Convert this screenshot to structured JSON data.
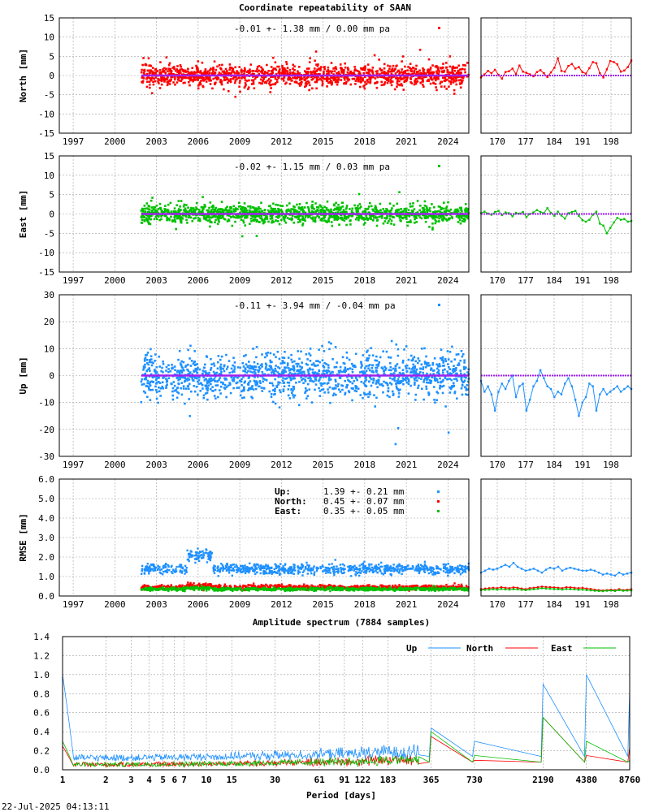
{
  "title": "Coordinate repeatability of SAAN",
  "timestamp": "22-Jul-2025 04:13:11",
  "colors": {
    "north": "#ff0000",
    "east": "#00c000",
    "up": "#1e90ff",
    "model": "#a020f0"
  },
  "chart_data": [
    {
      "type": "scatter",
      "id": "north",
      "ylabel": "North [mm]",
      "ylim": [
        -15,
        15
      ],
      "yticks": [
        -15,
        -10,
        -5,
        0,
        5,
        10,
        15
      ],
      "annotation": "-0.01 +- 1.38 mm /  0.00 mm pa",
      "xticks": [
        "1997",
        "2000",
        "2003",
        "2006",
        "2009",
        "2012",
        "2015",
        "2018",
        "2021",
        "2024"
      ],
      "xrange_years": [
        1996,
        2025.5
      ],
      "data_start_year": 2001.9,
      "data_end_year": 2025.5,
      "spread_mm": 1.38,
      "zoom_xticks": [
        "170",
        "177",
        "184",
        "191",
        "198"
      ],
      "zoom_xlim": [
        166,
        203
      ],
      "zoom_values": [
        -0.5,
        0.3,
        1.2,
        0.6,
        1.5,
        0.2,
        -0.8,
        0.9,
        1.1,
        1.8,
        0.4,
        2.6,
        1.0,
        0.7,
        0.3,
        -0.2,
        0.9,
        1.4,
        0.6,
        -0.4,
        0.8,
        2.0,
        4.5,
        1.2,
        1.0,
        2.5,
        3.0,
        1.8,
        2.2,
        0.9,
        0.5,
        1.9,
        3.5,
        3.2,
        0.6,
        -0.5,
        1.6,
        3.8,
        3.5,
        2.9,
        1.0,
        1.3,
        2.2,
        3.9
      ]
    },
    {
      "type": "scatter",
      "id": "east",
      "ylabel": "East [mm]",
      "ylim": [
        -15,
        15
      ],
      "yticks": [
        -15,
        -10,
        -5,
        0,
        5,
        10,
        15
      ],
      "annotation": "-0.02 +- 1.15 mm /  0.03 mm pa",
      "xticks": [
        "1997",
        "2000",
        "2003",
        "2006",
        "2009",
        "2012",
        "2015",
        "2018",
        "2021",
        "2024"
      ],
      "xrange_years": [
        1996,
        2025.5
      ],
      "data_start_year": 2001.9,
      "data_end_year": 2025.5,
      "spread_mm": 1.15,
      "zoom_xticks": [
        "170",
        "177",
        "184",
        "191",
        "198"
      ],
      "zoom_xlim": [
        166,
        203
      ],
      "zoom_values": [
        0.2,
        0.6,
        0.1,
        -0.2,
        0.5,
        0.8,
        -0.3,
        0.4,
        0.2,
        -0.6,
        0.3,
        0.1,
        0.5,
        -0.8,
        0.0,
        0.4,
        1.0,
        0.5,
        0.2,
        1.5,
        0.3,
        -0.5,
        0.6,
        -0.4,
        -1.2,
        0.2,
        0.5,
        0.8,
        -0.5,
        -1.6,
        -2.0,
        -1.5,
        -0.2,
        0.6,
        -2.5,
        -3.0,
        -5.0,
        -3.6,
        -2.2,
        -1.0,
        -1.5,
        -1.3,
        -2.0,
        -1.8
      ]
    },
    {
      "type": "scatter",
      "id": "up",
      "ylabel": "Up [mm]",
      "ylim": [
        -30,
        30
      ],
      "yticks": [
        -30,
        -20,
        -10,
        0,
        10,
        20,
        30
      ],
      "annotation": "-0.11 +- 3.94 mm / -0.04 mm pa",
      "xticks": [
        "1997",
        "2000",
        "2003",
        "2006",
        "2009",
        "2012",
        "2015",
        "2018",
        "2021",
        "2024"
      ],
      "xrange_years": [
        1996,
        2025.5
      ],
      "data_start_year": 2001.9,
      "data_end_year": 2025.5,
      "spread_mm": 3.94,
      "zoom_xticks": [
        "170",
        "177",
        "184",
        "191",
        "198"
      ],
      "zoom_xlim": [
        166,
        203
      ],
      "zoom_values": [
        -2.0,
        -6.0,
        -4.0,
        -7.0,
        -13.0,
        -6.0,
        -3.0,
        -5.0,
        -2.0,
        0.0,
        -8.0,
        -4.0,
        -3.0,
        -13.0,
        -9.0,
        -4.0,
        -2.0,
        2.0,
        -1.0,
        -4.0,
        -5.0,
        -8.0,
        -6.0,
        -7.0,
        -3.0,
        -1.0,
        -4.0,
        -9.0,
        -15.0,
        -10.0,
        -8.0,
        -3.0,
        -4.0,
        -13.0,
        -7.0,
        -5.0,
        -7.0,
        -6.0,
        -5.0,
        -4.0,
        -6.0,
        -5.0,
        -4.0,
        -5.0
      ]
    },
    {
      "type": "scatter",
      "id": "rmse",
      "ylabel": "RMSE [mm]",
      "ylim": [
        0,
        6
      ],
      "yticks": [
        "0.0",
        "1.0",
        "2.0",
        "3.0",
        "4.0",
        "5.0",
        "6.0"
      ],
      "xticks": [
        "1997",
        "2000",
        "2003",
        "2006",
        "2009",
        "2012",
        "2015",
        "2018",
        "2021",
        "2024"
      ],
      "xrange_years": [
        1996,
        2025.5
      ],
      "data_start_year": 2001.9,
      "data_end_year": 2025.5,
      "legend": [
        {
          "label": "Up:",
          "value": "1.39 +- 0.21 mm",
          "color": "#1e90ff"
        },
        {
          "label": "North:",
          "value": "0.45 +- 0.07 mm",
          "color": "#ff0000"
        },
        {
          "label": "East:",
          "value": "0.35 +- 0.05 mm",
          "color": "#00c000"
        }
      ],
      "series_means": {
        "up": 1.39,
        "north": 0.45,
        "east": 0.35
      },
      "zoom_xticks": [
        "170",
        "177",
        "184",
        "191",
        "198"
      ],
      "zoom_xlim": [
        166,
        203
      ],
      "zoom_up": [
        1.2,
        1.3,
        1.4,
        1.35,
        1.4,
        1.5,
        1.6,
        1.5,
        1.7,
        1.5,
        1.4,
        1.3,
        1.35,
        1.4,
        1.3,
        1.2,
        1.35,
        1.45,
        1.4,
        1.5,
        1.3,
        1.4,
        1.45,
        1.4,
        1.35,
        1.3,
        1.3,
        1.35,
        1.3,
        1.2,
        1.1,
        1.15,
        1.1,
        1.05,
        1.2,
        1.1,
        1.15,
        1.2
      ],
      "zoom_north": [
        0.35,
        0.38,
        0.4,
        0.42,
        0.4,
        0.45,
        0.42,
        0.4,
        0.44,
        0.42,
        0.38,
        0.35,
        0.4,
        0.42,
        0.45,
        0.48,
        0.46,
        0.45,
        0.44,
        0.42,
        0.4,
        0.45,
        0.44,
        0.42,
        0.4,
        0.42,
        0.38,
        0.36,
        0.32,
        0.3,
        0.28,
        0.3,
        0.32,
        0.3,
        0.35,
        0.3,
        0.32,
        0.34
      ],
      "zoom_east": [
        0.3,
        0.32,
        0.33,
        0.35,
        0.33,
        0.36,
        0.34,
        0.33,
        0.35,
        0.34,
        0.32,
        0.3,
        0.33,
        0.35,
        0.37,
        0.4,
        0.38,
        0.37,
        0.36,
        0.35,
        0.33,
        0.36,
        0.35,
        0.34,
        0.32,
        0.33,
        0.3,
        0.29,
        0.27,
        0.26,
        0.25,
        0.27,
        0.28,
        0.26,
        0.3,
        0.27,
        0.28,
        0.29
      ]
    },
    {
      "type": "line",
      "id": "spectrum",
      "title": "Amplitude spectrum (7884 samples)",
      "xlabel": "Period [days]",
      "ylim": [
        0,
        1.4
      ],
      "xscale": "log",
      "xlim": [
        1,
        8760
      ],
      "yticks": [
        "0.0",
        "0.2",
        "0.4",
        "0.6",
        "0.8",
        "1.0",
        "1.2",
        "1.4"
      ],
      "xticks": [
        1,
        2,
        3,
        4,
        5,
        6,
        7,
        10,
        15,
        30,
        61,
        91,
        122,
        183,
        365,
        730,
        2190,
        4380,
        8760
      ],
      "series": [
        {
          "name": "Up",
          "color": "#1e90ff",
          "peaks": [
            [
              1.05,
              1.0
            ],
            [
              365,
              0.44
            ],
            [
              730,
              0.3
            ],
            [
              2190,
              0.9
            ],
            [
              4380,
              1.0
            ],
            [
              8760,
              0.84
            ]
          ]
        },
        {
          "name": "North",
          "color": "#ff0000",
          "peaks": [
            [
              1.05,
              0.25
            ],
            [
              365,
              0.35
            ],
            [
              730,
              0.1
            ],
            [
              2190,
              0.55
            ],
            [
              4380,
              0.15
            ],
            [
              8760,
              0.24
            ]
          ]
        },
        {
          "name": "East",
          "color": "#00c000",
          "peaks": [
            [
              1.05,
              0.3
            ],
            [
              365,
              0.4
            ],
            [
              730,
              0.15
            ],
            [
              2190,
              0.55
            ],
            [
              4380,
              0.3
            ],
            [
              8760,
              0.1
            ]
          ]
        }
      ]
    }
  ]
}
